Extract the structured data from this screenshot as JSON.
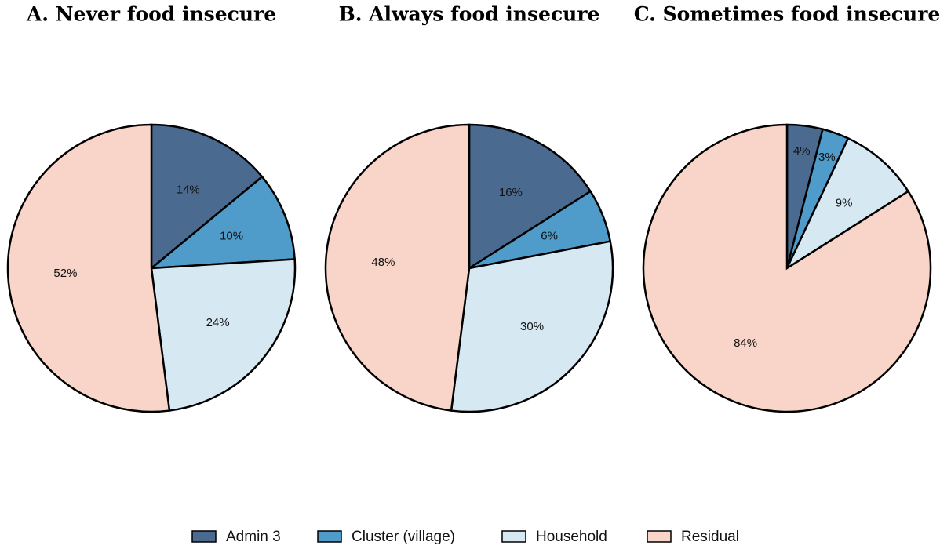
{
  "chart_data": [
    {
      "type": "pie",
      "title": "A. Never food insecure",
      "categories": [
        "Admin 3",
        "Cluster (village)",
        "Household",
        "Residual"
      ],
      "values": [
        14,
        10,
        24,
        52
      ],
      "value_labels": [
        "14%",
        "10%",
        "24%",
        "52%"
      ],
      "colors": [
        "#4a6a8f",
        "#4f9bc9",
        "#d6e8f2",
        "#f8d5c8"
      ]
    },
    {
      "type": "pie",
      "title": "B. Always food insecure",
      "categories": [
        "Admin 3",
        "Cluster (village)",
        "Household",
        "Residual"
      ],
      "values": [
        16,
        6,
        30,
        48
      ],
      "value_labels": [
        "16%",
        "6%",
        "30%",
        "48%"
      ],
      "colors": [
        "#4a6a8f",
        "#4f9bc9",
        "#d6e8f2",
        "#f8d5c8"
      ]
    },
    {
      "type": "pie",
      "title": "C. Sometimes food insecure",
      "categories": [
        "Admin 3",
        "Cluster (village)",
        "Household",
        "Residual"
      ],
      "values": [
        4,
        3,
        9,
        84
      ],
      "value_labels": [
        "4%",
        "3%",
        "9%",
        "84%"
      ],
      "colors": [
        "#4a6a8f",
        "#4f9bc9",
        "#d6e8f2",
        "#f8d5c8"
      ]
    }
  ]
}
